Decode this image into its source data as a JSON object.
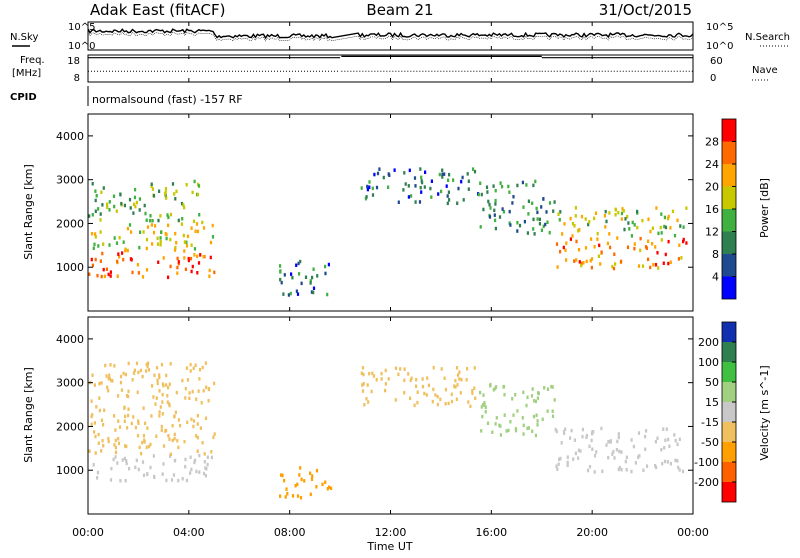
{
  "header": {
    "title": "Adak East (fitACF)",
    "beam": "Beam 21",
    "date": "31/Oct/2015"
  },
  "strips": {
    "nsky_label": "N.Sky",
    "nsearch_label": "N.Search",
    "freq_label_top": "Freq.",
    "freq_label_unit": "[MHz]",
    "nave_label": "Nave",
    "cpid_label": "CPID",
    "cpid_text": "normalsound (fast) -157 RF",
    "noise_ticks_left": [
      "10^5",
      "10^0"
    ],
    "noise_ticks_right": [
      "10^5",
      "10^0"
    ],
    "freq_ticks_left": [
      "18",
      "8"
    ],
    "nave_ticks_right": [
      "60",
      "0"
    ],
    "freq_segments": [
      {
        "x0": 0,
        "x1": 10.0,
        "value": 17
      },
      {
        "x0": 10.05,
        "x1": 18.0,
        "value": 17.5
      },
      {
        "x0": 18.0,
        "x1": 24.0,
        "value": 17
      }
    ],
    "nave_segments": [
      {
        "x0": 0,
        "x1": 10.0,
        "value": 24
      },
      {
        "x0": 10.05,
        "x1": 18.0,
        "value": 24
      },
      {
        "x0": 18.0,
        "x1": 24.0,
        "value": 24
      }
    ],
    "data_gap": [
      9.75,
      10.7
    ]
  },
  "chart_data": [
    {
      "type": "heatmap",
      "name": "power",
      "ylabel": "Slant Range [km]",
      "ylim": [
        0,
        4500
      ],
      "xlim": [
        0,
        24
      ],
      "yticks": [
        1000,
        2000,
        3000,
        4000
      ],
      "colorbar": {
        "label": "Power [dB]",
        "ticks": [
          "28",
          "24",
          "20",
          "16",
          "12",
          "8",
          "4"
        ],
        "values": [
          28,
          24,
          20,
          16,
          12,
          8,
          4
        ],
        "colors": [
          "#ff0000",
          "#ff6a00",
          "#ffa500",
          "#c8c800",
          "#40b040",
          "#2f7f50",
          "#204a90",
          "#0000ff"
        ]
      },
      "regions": [
        {
          "x0": 0.0,
          "x1": 5.0,
          "y0": 800,
          "y1": 1400,
          "level": 26
        },
        {
          "x0": 0.0,
          "x1": 5.0,
          "y0": 1400,
          "y1": 2100,
          "level": 18
        },
        {
          "x0": 0.0,
          "x1": 4.5,
          "y0": 2100,
          "y1": 3000,
          "level": 14
        },
        {
          "x0": 7.5,
          "x1": 9.6,
          "y0": 400,
          "y1": 1200,
          "level": 8
        },
        {
          "x0": 10.8,
          "x1": 15.5,
          "y0": 2500,
          "y1": 3300,
          "level": 8
        },
        {
          "x0": 15.5,
          "x1": 18.5,
          "y0": 1800,
          "y1": 3000,
          "level": 10
        },
        {
          "x0": 18.5,
          "x1": 23.8,
          "y0": 1000,
          "y1": 1700,
          "level": 24
        },
        {
          "x0": 18.5,
          "x1": 23.8,
          "y0": 1700,
          "y1": 2400,
          "level": 16
        }
      ]
    },
    {
      "type": "heatmap",
      "name": "velocity",
      "ylabel": "Slant Range [km]",
      "ylim": [
        0,
        4500
      ],
      "xlim": [
        0,
        24
      ],
      "yticks": [
        1000,
        2000,
        3000,
        4000
      ],
      "colorbar": {
        "label": "Velocity [m s^-1]",
        "ticks": [
          "200",
          "100",
          "50",
          "15",
          "-15",
          "-50",
          "-100",
          "-200"
        ],
        "values": [
          200,
          100,
          50,
          15,
          -15,
          -50,
          -100,
          -200
        ],
        "colors": [
          "#1030b0",
          "#2f7f50",
          "#40c040",
          "#a0d080",
          "#c8c8c8",
          "#f0c060",
          "#ffa000",
          "#ff6000",
          "#ff0000"
        ]
      },
      "regions": [
        {
          "x0": 0.0,
          "x1": 5.0,
          "y0": 800,
          "y1": 1400,
          "level": 0
        },
        {
          "x0": 0.0,
          "x1": 5.0,
          "y0": 1400,
          "y1": 3500,
          "level": -40
        },
        {
          "x0": 7.5,
          "x1": 9.6,
          "y0": 400,
          "y1": 1100,
          "level": -60
        },
        {
          "x0": 10.8,
          "x1": 15.5,
          "y0": 2500,
          "y1": 3400,
          "level": -40
        },
        {
          "x0": 15.5,
          "x1": 18.5,
          "y0": 1800,
          "y1": 3000,
          "level": 40
        },
        {
          "x0": 18.5,
          "x1": 23.8,
          "y0": 1000,
          "y1": 2000,
          "level": 0
        }
      ]
    }
  ],
  "xaxis": {
    "label": "Time UT",
    "ticks": [
      0,
      4,
      8,
      12,
      16,
      20,
      24
    ],
    "tick_labels": [
      "00:00",
      "04:00",
      "08:00",
      "12:00",
      "16:00",
      "20:00",
      "00:00"
    ]
  }
}
